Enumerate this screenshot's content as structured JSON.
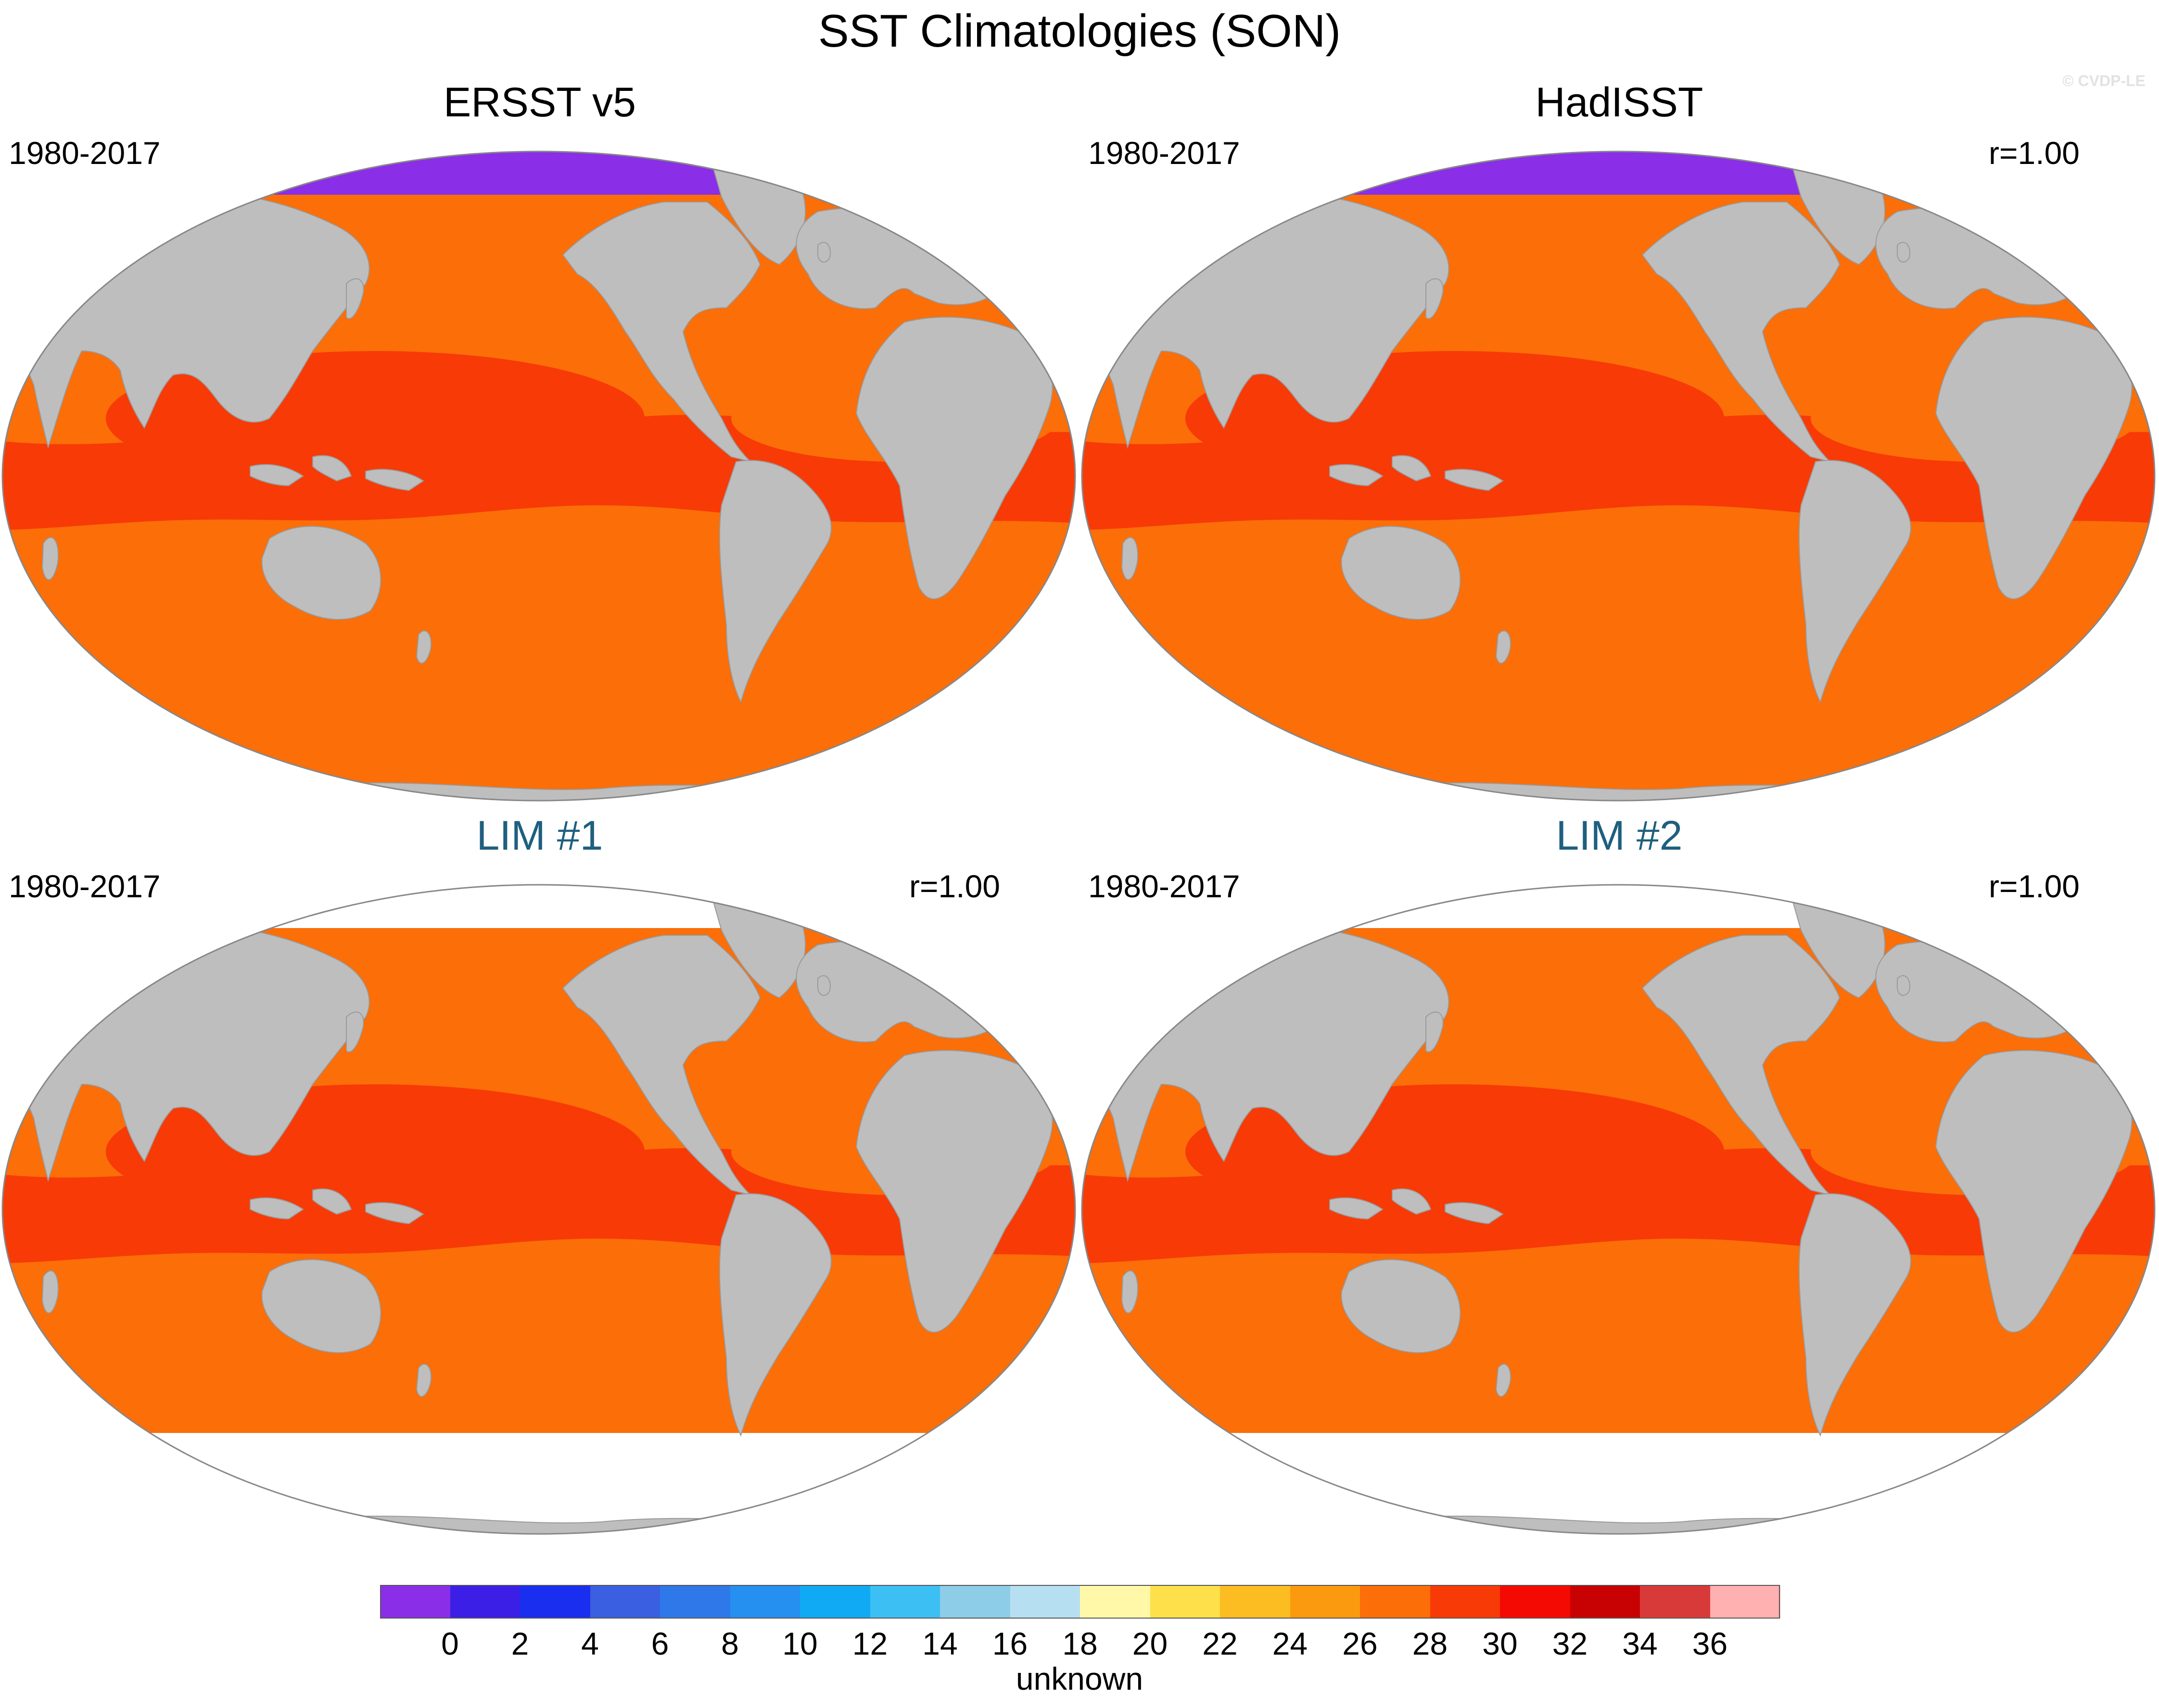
{
  "title": "SST Climatologies (SON)",
  "watermark": "© CVDP-LE",
  "panels": [
    {
      "name": "ERSST v5",
      "period": "1980-2017",
      "corr": "",
      "kind": "observation",
      "antarctic_ice": true
    },
    {
      "name": "HadISST",
      "period": "1980-2017",
      "corr": "r=1.00",
      "kind": "observation",
      "antarctic_ice": true
    },
    {
      "name": "LIM #1",
      "period": "1980-2017",
      "corr": "r=1.00",
      "kind": "model",
      "antarctic_ice": false
    },
    {
      "name": "LIM #2",
      "period": "1980-2017",
      "corr": "r=1.00",
      "kind": "model",
      "antarctic_ice": false
    }
  ],
  "colorbar": {
    "label": "unknown",
    "ticks": [
      "0",
      "2",
      "4",
      "6",
      "8",
      "10",
      "12",
      "14",
      "16",
      "18",
      "20",
      "22",
      "24",
      "26",
      "28",
      "30",
      "32",
      "34",
      "36"
    ],
    "colors": [
      "#8a2ee8",
      "#3b1fe6",
      "#1a2ef0",
      "#3a5fe0",
      "#2f78ea",
      "#2590f0",
      "#10aaf4",
      "#3cc0f4",
      "#8ecde8",
      "#b7dff2",
      "#fff8a8",
      "#fde04a",
      "#fbbd22",
      "#fb9a0e",
      "#fb6e08",
      "#f83a06",
      "#f40a02",
      "#c80202",
      "#d83a3a",
      "#ffb0b0"
    ]
  },
  "map_colors": {
    "land": "#bebebe",
    "sea_ice": "#8a2ee8",
    "missing": "#ffffff"
  }
}
